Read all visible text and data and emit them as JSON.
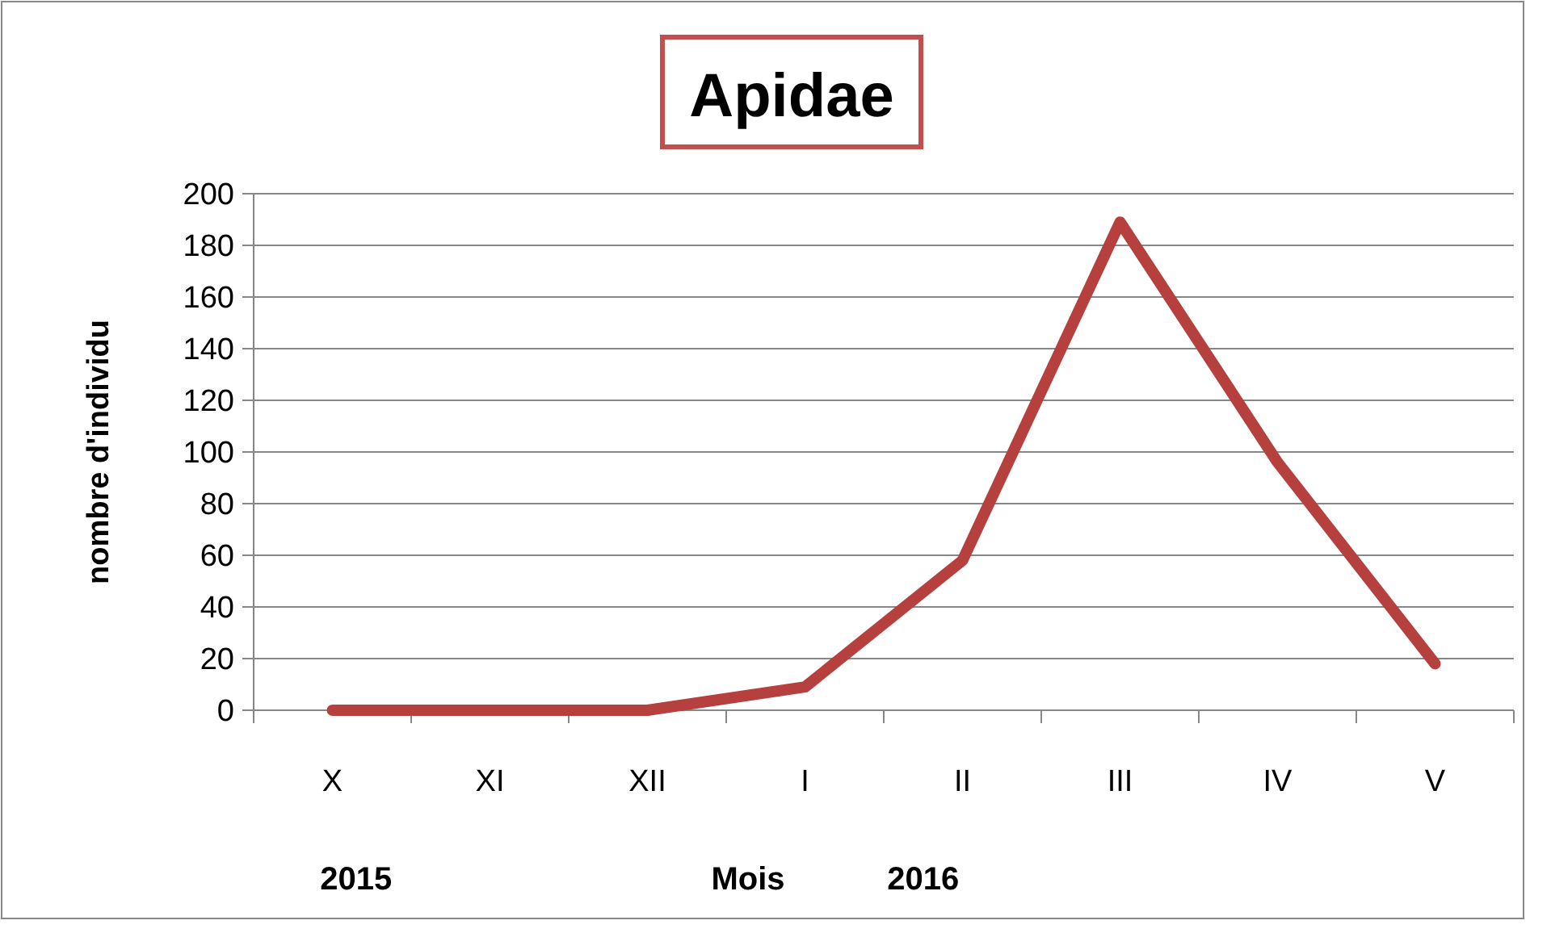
{
  "chart_data": {
    "type": "line",
    "title": "Apidae",
    "xlabel": "Mois",
    "ylabel": "nombre d'individu",
    "categories": [
      "X",
      "XI",
      "XII",
      "I",
      "II",
      "III",
      "IV",
      "V"
    ],
    "series": [
      {
        "color": "#b5403d",
        "values": [
          0,
          0,
          0,
          9,
          58,
          189,
          96,
          18
        ]
      }
    ],
    "ylim": [
      0,
      200
    ],
    "yticks": [
      0,
      20,
      40,
      60,
      80,
      100,
      120,
      140,
      160,
      180,
      200
    ],
    "grid": "y",
    "marker": "none",
    "line_style": "solid",
    "annotations": [
      "2015",
      "2016"
    ]
  }
}
